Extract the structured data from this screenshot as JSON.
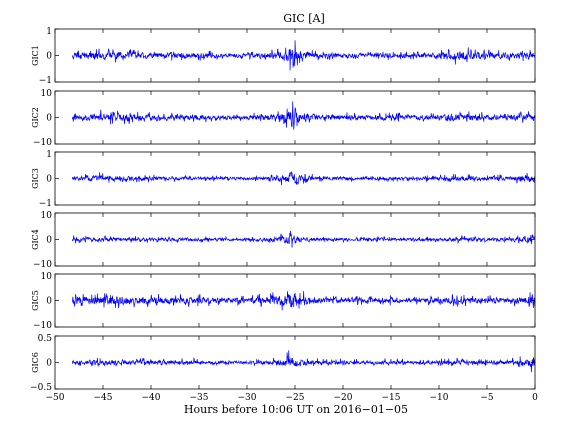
{
  "chart_data": {
    "type": "line",
    "title": "GIC [A]",
    "xlabel": "Hours before  10:06 UT on 2016−01−05",
    "xlim": [
      -50,
      0
    ],
    "xticks": [
      -50,
      -45,
      -40,
      -35,
      -30,
      -25,
      -20,
      -15,
      -10,
      -5,
      0
    ],
    "line_color": "#0000ff",
    "grid": false,
    "panels": [
      {
        "ylabel": "GIC1",
        "ylim": [
          -1,
          1
        ],
        "yticks": [
          -1,
          0,
          1
        ],
        "y_tick_labels": [
          "−1",
          "0",
          "1"
        ],
        "series": {
          "x": [
            -47.5,
            -45,
            -42.5,
            -40,
            -37.5,
            -35,
            -32.5,
            -30,
            -27.5,
            -26,
            -25.4,
            -24.5,
            -22.5,
            -20,
            -17.5,
            -15,
            -12.5,
            -10,
            -8.5,
            -5,
            -2.5,
            -1,
            0
          ],
          "min": [
            -0.25,
            -0.3,
            -0.25,
            -0.2,
            -0.2,
            -0.2,
            -0.15,
            -0.15,
            -0.2,
            -0.3,
            -0.65,
            -0.3,
            -0.2,
            -0.2,
            -0.15,
            -0.2,
            -0.15,
            -0.2,
            -0.35,
            -0.25,
            -0.2,
            -0.25,
            -0.3
          ],
          "max": [
            0.25,
            0.3,
            0.25,
            0.2,
            0.2,
            0.2,
            0.15,
            0.15,
            0.25,
            0.35,
            0.85,
            0.35,
            0.2,
            0.2,
            0.15,
            0.2,
            0.15,
            0.25,
            0.35,
            0.25,
            0.2,
            0.25,
            0.2
          ]
        }
      },
      {
        "ylabel": "GIC2",
        "ylim": [
          -10,
          10
        ],
        "yticks": [
          -10,
          0,
          10
        ],
        "y_tick_labels": [
          "−10",
          "0",
          "10"
        ],
        "series": {
          "x": [
            -47.5,
            -45,
            -42.5,
            -40,
            -37.5,
            -35,
            -32.5,
            -30,
            -27.5,
            -26,
            -25.4,
            -24.5,
            -22.5,
            -20,
            -17.5,
            -15,
            -12.5,
            -10,
            -8.5,
            -5,
            -2.5,
            -1,
            0
          ],
          "min": [
            -2,
            -3,
            -2.5,
            -2,
            -2,
            -2,
            -1.5,
            -1.5,
            -2,
            -3.5,
            -6,
            -3.5,
            -2,
            -2,
            -1.5,
            -2,
            -1.5,
            -2,
            -3,
            -2,
            -2,
            -2.5,
            -2
          ],
          "max": [
            2,
            3,
            3,
            2,
            2,
            2,
            1.5,
            1.5,
            2.5,
            4,
            7,
            4,
            2,
            2,
            1.5,
            2,
            1.5,
            2,
            3,
            2,
            2,
            2.5,
            3
          ]
        }
      },
      {
        "ylabel": "GIC3",
        "ylim": [
          -1,
          1
        ],
        "yticks": [
          -1,
          0,
          1
        ],
        "y_tick_labels": [
          "−1",
          "0",
          "1"
        ],
        "series": {
          "x": [
            -47.5,
            -45,
            -42.5,
            -40,
            -37.5,
            -35,
            -32.5,
            -30,
            -27.5,
            -26,
            -25.4,
            -24.5,
            -22.5,
            -20,
            -17.5,
            -15,
            -12.5,
            -10,
            -8.5,
            -5,
            -2.5,
            -1,
            0
          ],
          "min": [
            -0.15,
            -0.2,
            -0.15,
            -0.15,
            -0.12,
            -0.12,
            -0.1,
            -0.1,
            -0.15,
            -0.3,
            -0.45,
            -0.25,
            -0.12,
            -0.12,
            -0.1,
            -0.12,
            -0.1,
            -0.12,
            -0.2,
            -0.15,
            -0.15,
            -0.25,
            -0.3
          ],
          "max": [
            0.15,
            0.25,
            0.2,
            0.15,
            0.12,
            0.12,
            0.1,
            0.1,
            0.15,
            0.3,
            0.5,
            0.3,
            0.12,
            0.12,
            0.1,
            0.12,
            0.1,
            0.15,
            0.2,
            0.15,
            0.15,
            0.3,
            0.2
          ]
        }
      },
      {
        "ylabel": "GIC4",
        "ylim": [
          -10,
          10
        ],
        "yticks": [
          -10,
          0,
          10
        ],
        "y_tick_labels": [
          "−10",
          "0",
          "10"
        ],
        "series": {
          "x": [
            -47.5,
            -45,
            -42.5,
            -40,
            -37.5,
            -35,
            -32.5,
            -30,
            -27.5,
            -26,
            -25.4,
            -24.5,
            -22.5,
            -20,
            -17.5,
            -15,
            -12.5,
            -10,
            -8.5,
            -5,
            -2.5,
            -1,
            0
          ],
          "min": [
            -1.5,
            -1.5,
            -1.5,
            -1.2,
            -1.2,
            -1.2,
            -1,
            -1,
            -1.5,
            -2.5,
            -4,
            -2,
            -1,
            -1,
            -1,
            -1,
            -1,
            -1.2,
            -1.5,
            -1.2,
            -1.2,
            -2,
            -3
          ],
          "max": [
            1.5,
            1.5,
            1.5,
            1.2,
            1.2,
            1.2,
            1,
            1,
            1.5,
            2.5,
            3.5,
            2,
            1,
            1,
            1,
            1,
            1,
            1.2,
            1.5,
            1.2,
            1.2,
            3,
            2
          ]
        }
      },
      {
        "ylabel": "GIC5",
        "ylim": [
          -10,
          10
        ],
        "yticks": [
          -10,
          0,
          10
        ],
        "y_tick_labels": [
          "−10",
          "0",
          "10"
        ],
        "series": {
          "x": [
            -47.5,
            -45,
            -42.5,
            -40,
            -37.5,
            -35,
            -32.5,
            -30,
            -27.5,
            -26,
            -25.4,
            -24.5,
            -22.5,
            -20,
            -17.5,
            -15,
            -12.5,
            -10,
            -8.5,
            -5,
            -2.5,
            -1,
            0
          ],
          "min": [
            -3,
            -3,
            -3,
            -2.5,
            -2.5,
            -2.5,
            -2,
            -2,
            -3,
            -4.5,
            -7,
            -4,
            -2,
            -2,
            -1.5,
            -2,
            -1.5,
            -2,
            -2.5,
            -2,
            -2,
            -3,
            -3
          ],
          "max": [
            3,
            3,
            3,
            2.5,
            2.5,
            2.5,
            2,
            2,
            3,
            4.5,
            7,
            4,
            2,
            2,
            1.5,
            2,
            1.5,
            2,
            2.5,
            2,
            2,
            4.5,
            3
          ]
        }
      },
      {
        "ylabel": "GIC6",
        "ylim": [
          -0.5,
          0.5
        ],
        "yticks": [
          -0.5,
          0,
          0.5
        ],
        "y_tick_labels": [
          "−0.5",
          "0",
          "0.5"
        ],
        "series": {
          "x": [
            -47.5,
            -45,
            -42.5,
            -40,
            -37.5,
            -35,
            -32.5,
            -30,
            -27.5,
            -26,
            -25.4,
            -24.5,
            -22.5,
            -20,
            -17.5,
            -15,
            -12.5,
            -10,
            -8.5,
            -5,
            -2.5,
            -1,
            0
          ],
          "min": [
            -0.06,
            -0.08,
            -0.08,
            -0.06,
            -0.06,
            -0.06,
            -0.05,
            -0.05,
            -0.07,
            -0.1,
            -0.12,
            -0.08,
            -0.06,
            -0.06,
            -0.05,
            -0.06,
            -0.05,
            -0.06,
            -0.08,
            -0.06,
            -0.06,
            -0.1,
            -0.25
          ],
          "max": [
            0.1,
            0.12,
            0.1,
            0.08,
            0.08,
            0.08,
            0.06,
            0.06,
            0.1,
            0.15,
            0.3,
            0.15,
            0.08,
            0.08,
            0.06,
            0.08,
            0.06,
            0.08,
            0.12,
            0.08,
            0.08,
            0.15,
            0.08
          ]
        }
      }
    ]
  }
}
